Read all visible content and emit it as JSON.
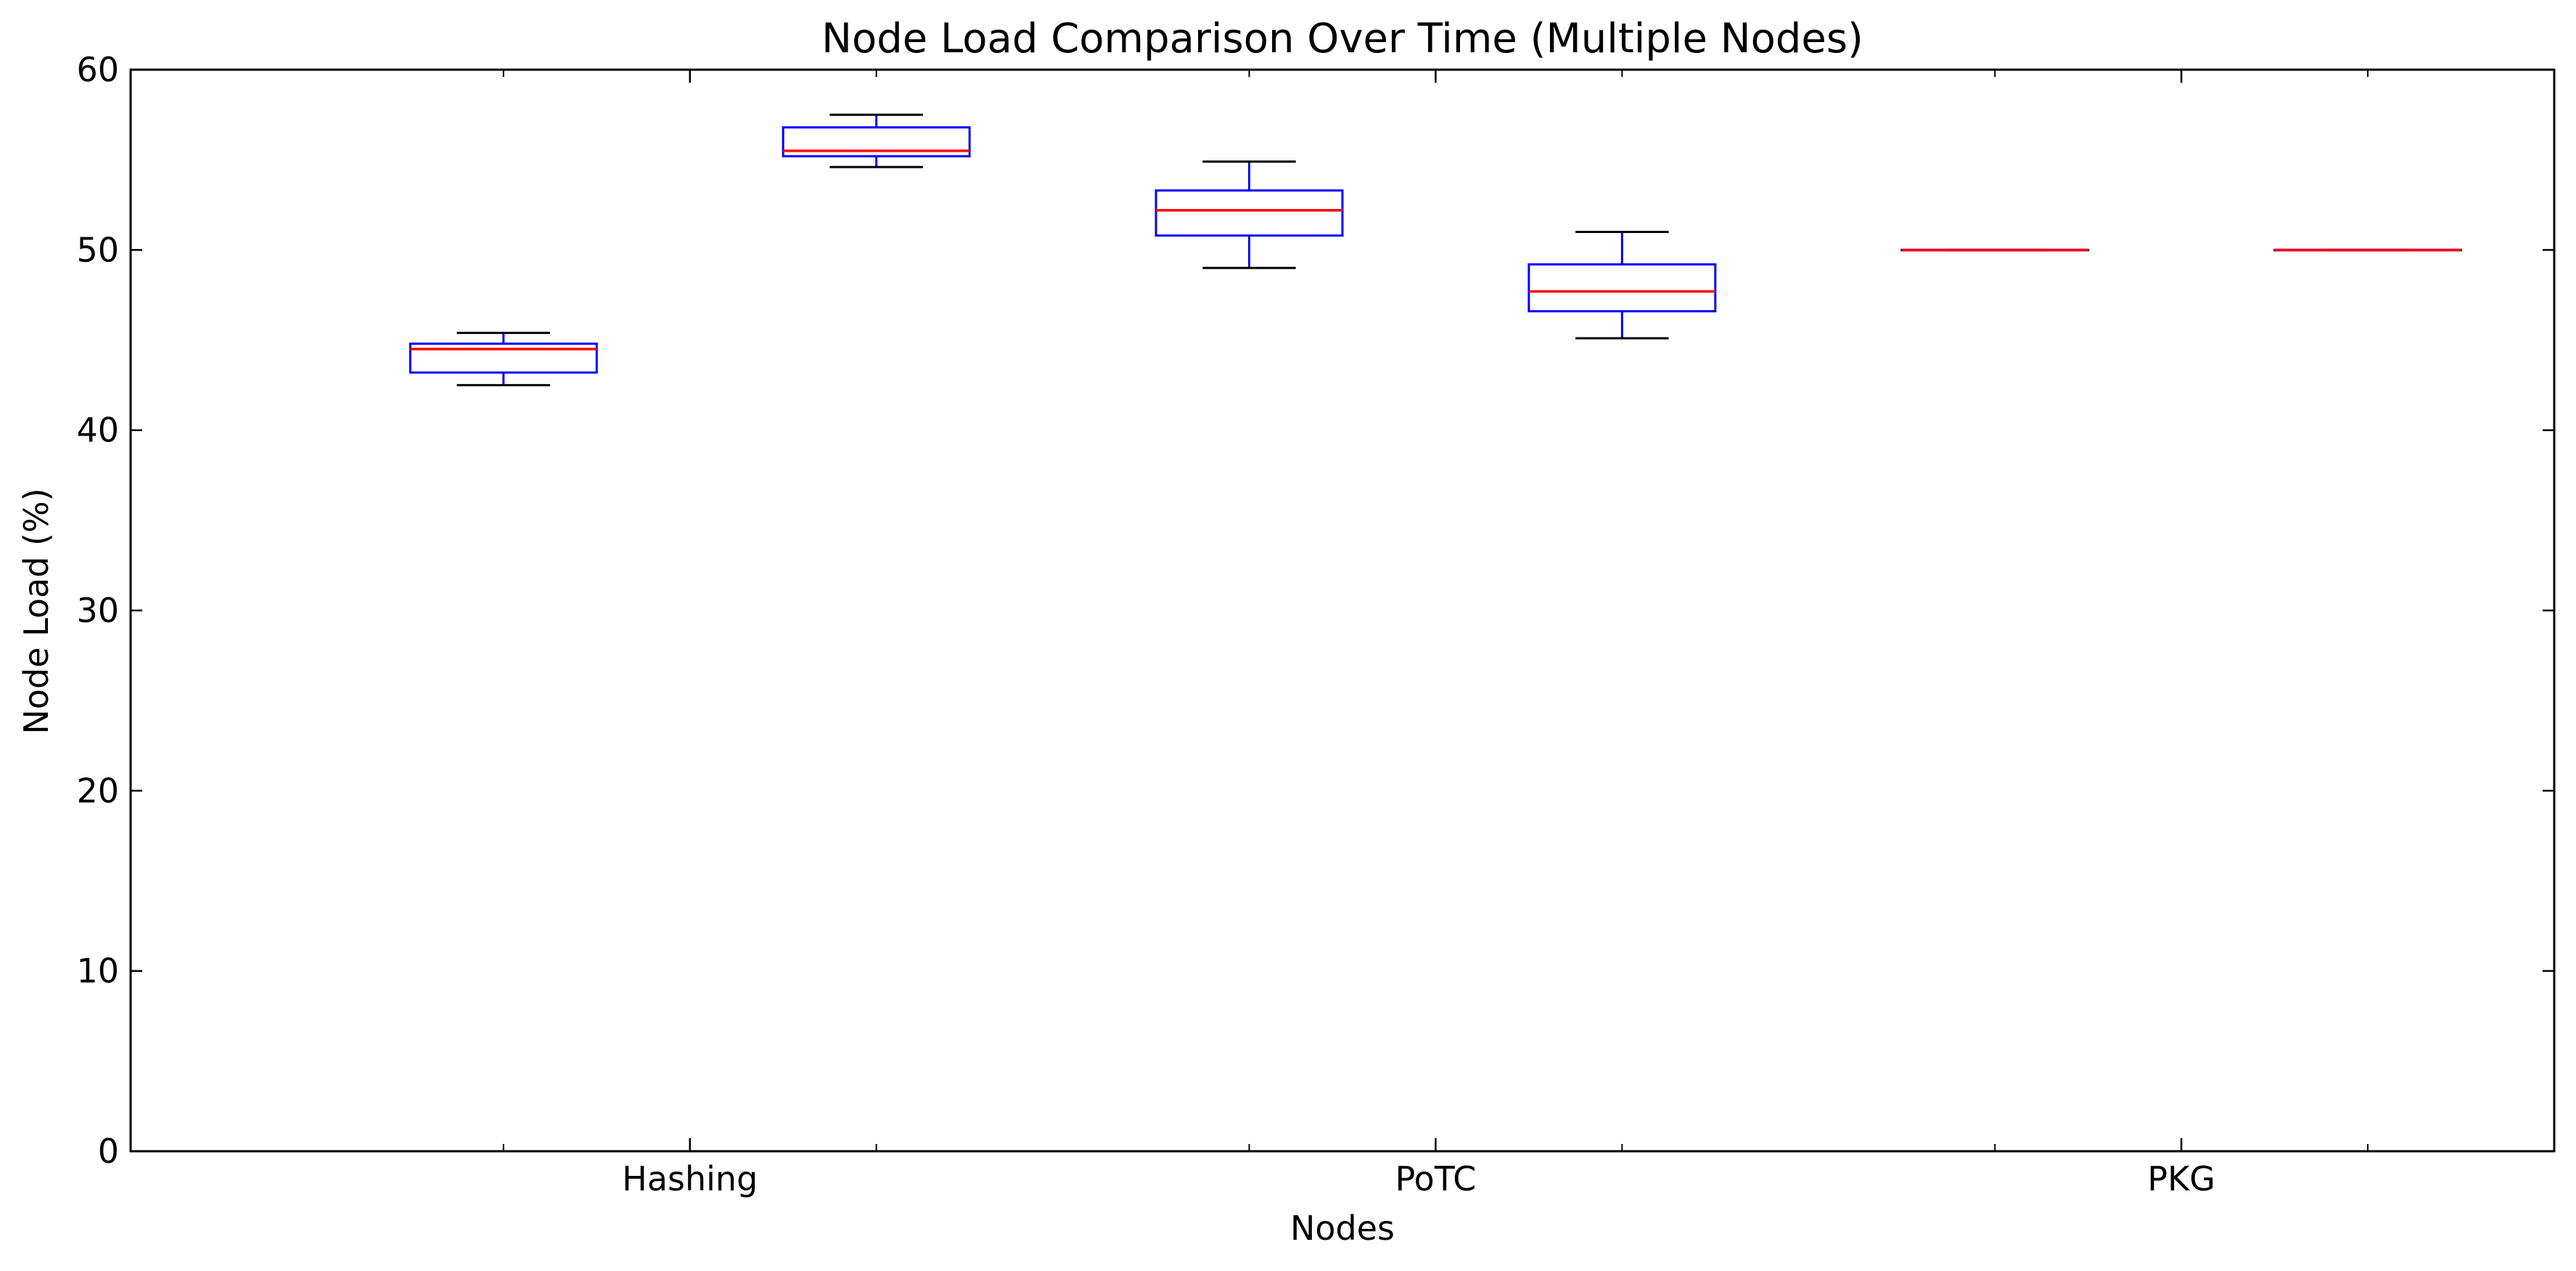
{
  "chart_data": {
    "type": "boxplot",
    "title": "Node Load Comparison Over Time (Multiple Nodes)",
    "xlabel": "Nodes",
    "ylabel": "Node Load (%)",
    "ylim": [
      0,
      60
    ],
    "yticks": [
      0,
      10,
      20,
      30,
      40,
      50,
      60
    ],
    "categories": [
      "Hashing",
      "PoTC",
      "PKG"
    ],
    "grid": false,
    "colors": {
      "box": "#0000ff",
      "median": "#ff0000",
      "whisker": "#0000ff",
      "cap": "#000000",
      "axis": "#000000"
    },
    "boxes": [
      {
        "category": "Hashing",
        "position": 1.5,
        "whisker_low": 42.5,
        "q1": 43.2,
        "median": 44.5,
        "q3": 44.8,
        "whisker_high": 45.4
      },
      {
        "category": "Hashing",
        "position": 2.5,
        "whisker_low": 54.6,
        "q1": 55.2,
        "median": 55.5,
        "q3": 56.8,
        "whisker_high": 57.5
      },
      {
        "category": "PoTC",
        "position": 3.5,
        "whisker_low": 49.0,
        "q1": 50.8,
        "median": 52.2,
        "q3": 53.3,
        "whisker_high": 54.9
      },
      {
        "category": "PoTC",
        "position": 4.5,
        "whisker_low": 45.1,
        "q1": 46.6,
        "median": 47.7,
        "q3": 49.2,
        "whisker_high": 51.0
      },
      {
        "category": "PKG",
        "position": 5.5,
        "whisker_low": 50.0,
        "q1": 50.0,
        "median": 50.0,
        "q3": 50.0,
        "whisker_high": 50.0
      },
      {
        "category": "PKG",
        "position": 6.5,
        "whisker_low": 50.0,
        "q1": 50.0,
        "median": 50.0,
        "q3": 50.0,
        "whisker_high": 50.0
      }
    ],
    "category_positions": [
      2,
      4,
      6
    ],
    "xlim": [
      0.5,
      7.0
    ]
  }
}
